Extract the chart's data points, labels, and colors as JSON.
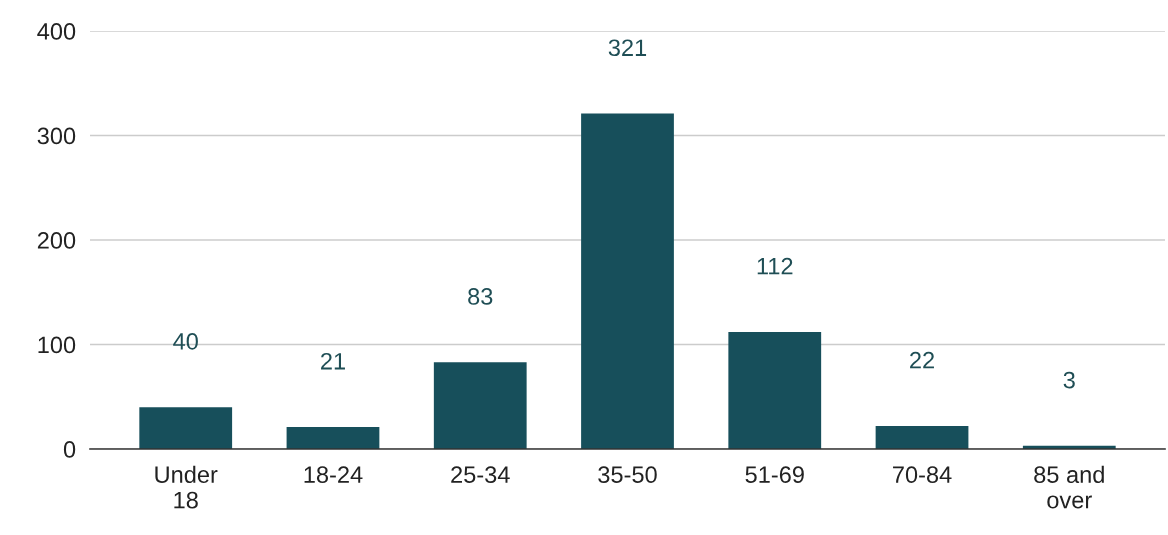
{
  "chart_data": {
    "type": "bar",
    "categories": [
      "Under\n18",
      "18-24",
      "25-34",
      "35-50",
      "51-69",
      "70-84",
      "85 and\nover"
    ],
    "values": [
      40,
      21,
      83,
      321,
      112,
      22,
      3
    ],
    "color": "#174f5b",
    "ylim": [
      0,
      400
    ],
    "yticks": [
      0,
      100,
      200,
      300,
      400
    ],
    "grid": "y",
    "data_labels": true
  }
}
